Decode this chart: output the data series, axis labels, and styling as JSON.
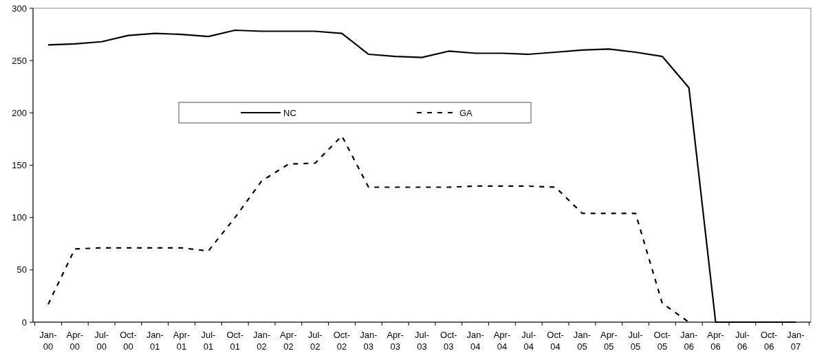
{
  "chart_data": {
    "type": "line",
    "categories": [
      "Jan-00",
      "Apr-00",
      "Jul-00",
      "Oct-00",
      "Jan-01",
      "Apr-01",
      "Jul-01",
      "Oct-01",
      "Jan-02",
      "Apr-02",
      "Jul-02",
      "Oct-02",
      "Jan-03",
      "Apr-03",
      "Jul-03",
      "Oct-03",
      "Jan-04",
      "Apr-04",
      "Jul-04",
      "Oct-04",
      "Jan-05",
      "Apr-05",
      "Jul-05",
      "Oct-05",
      "Jan-06",
      "Apr-06",
      "Jul-06",
      "Oct-06",
      "Jan-07"
    ],
    "series": [
      {
        "name": "NC",
        "color": "#000000",
        "line_style": "solid",
        "values": [
          265,
          266,
          268,
          274,
          276,
          275,
          273,
          279,
          278,
          278,
          278,
          276,
          256,
          254,
          253,
          259,
          257,
          257,
          256,
          258,
          260,
          261,
          258,
          254,
          224,
          0,
          0,
          0,
          0
        ]
      },
      {
        "name": "GA",
        "color": "#000000",
        "line_style": "dashed",
        "values": [
          17,
          70,
          71,
          71,
          71,
          71,
          68,
          100,
          135,
          151,
          152,
          178,
          129,
          129,
          129,
          129,
          130,
          130,
          130,
          129,
          104,
          104,
          104,
          18,
          0,
          null,
          null,
          null,
          null
        ]
      }
    ],
    "ylim": [
      0,
      300
    ],
    "yticks": [
      0,
      50,
      100,
      150,
      200,
      250,
      300
    ],
    "grid": false,
    "legend": "center",
    "marker": "none"
  }
}
